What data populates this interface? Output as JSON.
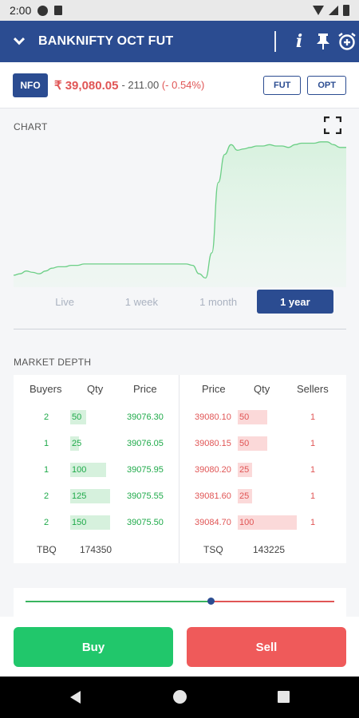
{
  "status_bar": {
    "time": "2:00"
  },
  "header": {
    "title": "BANKNIFTY OCT FUT"
  },
  "quote": {
    "exchange": "NFO",
    "price": "₹ 39,080.05",
    "change": "- 211.00",
    "change_pct": "(- 0.54%)",
    "buttons": [
      "FUT",
      "OPT"
    ]
  },
  "chart_section": {
    "label": "CHART",
    "ranges": [
      "Live",
      "1 week",
      "1 month",
      "1 year"
    ],
    "active_range": "1 year"
  },
  "chart_data": {
    "type": "area",
    "values": [
      0.04,
      0.05,
      0.07,
      0.06,
      0.05,
      0.07,
      0.09,
      0.1,
      0.1,
      0.11,
      0.11,
      0.12,
      0.12,
      0.12,
      0.12,
      0.12,
      0.12,
      0.12,
      0.12,
      0.12,
      0.12,
      0.12,
      0.12,
      0.12,
      0.12,
      0.12,
      0.12,
      0.12,
      0.11,
      0.05,
      0.02,
      0.2,
      0.7,
      0.9,
      0.97,
      0.93,
      0.94,
      0.95,
      0.96,
      0.96,
      0.97,
      0.96,
      0.96,
      0.95,
      0.97,
      0.98,
      0.98,
      0.98,
      0.99,
      0.99,
      0.97,
      0.95,
      0.95
    ],
    "line_color": "#6ccf86",
    "fill_color": "#d6f1dd"
  },
  "market_depth": {
    "label": "MARKET DEPTH",
    "buy_headers": [
      "Buyers",
      "Qty",
      "Price"
    ],
    "sell_headers": [
      "Price",
      "Qty",
      "Sellers"
    ],
    "bids": [
      {
        "orders": "2",
        "qty": "50",
        "price": "39076.30",
        "depth": 0.25
      },
      {
        "orders": "1",
        "qty": "25",
        "price": "39076.05",
        "depth": 0.14
      },
      {
        "orders": "1",
        "qty": "100",
        "price": "39075.95",
        "depth": 0.56
      },
      {
        "orders": "2",
        "qty": "125",
        "price": "39075.55",
        "depth": 0.62
      },
      {
        "orders": "2",
        "qty": "150",
        "price": "39075.50",
        "depth": 0.62
      }
    ],
    "asks": [
      {
        "price": "39080.10",
        "qty": "50",
        "orders": "1",
        "depth": 0.46
      },
      {
        "price": "39080.15",
        "qty": "50",
        "orders": "1",
        "depth": 0.46
      },
      {
        "price": "39080.20",
        "qty": "25",
        "orders": "1",
        "depth": 0.23
      },
      {
        "price": "39081.60",
        "qty": "25",
        "orders": "1",
        "depth": 0.23
      },
      {
        "price": "39084.70",
        "qty": "100",
        "orders": "1",
        "depth": 0.92
      }
    ],
    "tbq_label": "TBQ",
    "tbq_value": "174350",
    "tsq_label": "TSQ",
    "tsq_value": "143225",
    "buy_sell_ratio": 0.6
  },
  "actions": {
    "buy": "Buy",
    "sell": "Sell"
  }
}
